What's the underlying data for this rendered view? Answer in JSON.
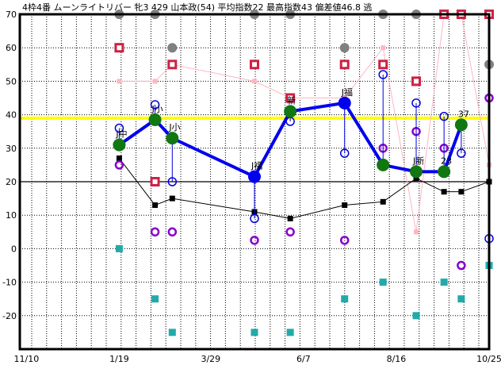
{
  "chart_data": {
    "type": "line",
    "title": "4枠4番 ムーンライトリバー 牝3 429 山本政(54) 平均指数22 最高指数43 偏差値46.8 逃",
    "xlabel": "",
    "ylabel": "",
    "x_tick_labels": [
      "11/10",
      "1/19",
      "3/29",
      "6/7",
      "8/16",
      "10/25"
    ],
    "y_tick_labels": [
      "70",
      "60",
      "50",
      "40",
      "30",
      "20",
      "10",
      "0",
      "-10",
      "-20"
    ],
    "xlim": [
      "11/5",
      "10/25"
    ],
    "ylim": [
      -30,
      70
    ],
    "grid": true,
    "reference_lines": [
      {
        "value": 39,
        "color": "#ffff00"
      },
      {
        "value": 20,
        "color": "#000000"
      }
    ],
    "x": [
      "1/19",
      "2/15",
      "2/28",
      "5/1",
      "5/28",
      "7/8",
      "8/6",
      "8/31",
      "9/21",
      "10/4",
      "10/25"
    ],
    "series": [
      {
        "style": "gray-dot",
        "color": "#808080",
        "values": [
          70,
          70,
          60,
          70,
          70,
          60,
          70,
          70,
          null,
          null,
          55
        ]
      },
      {
        "style": "red-square",
        "color": "#cc2244",
        "values": [
          60,
          20,
          55,
          55,
          45,
          55,
          55,
          50,
          70,
          70,
          70
        ]
      },
      {
        "style": "pink-line",
        "color": "#ffb6c1",
        "values": [
          50,
          50,
          55,
          50,
          45,
          45,
          60,
          5,
          70,
          70,
          25
        ]
      },
      {
        "style": "black-line",
        "color": "#000000",
        "values": [
          27,
          13,
          15,
          11,
          9,
          13,
          14,
          21,
          17,
          17,
          20
        ]
      },
      {
        "style": "purple-ring",
        "color": "#8800cc",
        "values": [
          25,
          5,
          5,
          2.5,
          5,
          2.5,
          30,
          35,
          30,
          -5,
          45
        ]
      },
      {
        "style": "teal-square",
        "color": "#22aaaa",
        "values": [
          0,
          -15,
          -25,
          -25,
          -25,
          -15,
          -10,
          -20,
          -10,
          -15,
          -5
        ]
      },
      {
        "style": "blue-ring",
        "color": "#0000dd",
        "values": [
          36,
          43,
          20,
          9,
          38,
          28.5,
          52,
          43.5,
          39.5,
          28.5,
          3
        ]
      },
      {
        "style": "main-line",
        "color": "#0000ee",
        "values": [
          31,
          38.5,
          33,
          21.5,
          41,
          43.5,
          25,
          23,
          23,
          37,
          null
        ],
        "marker_colors": [
          "#117711",
          "#117711",
          "#117711",
          "#0000ee",
          "#117711",
          "#0000ee",
          "#117711",
          "#117711",
          "#117711",
          "#117711",
          null
        ],
        "labels": [
          "J中",
          "J小",
          "J小",
          "J福",
          "新",
          "J福",
          "",
          "J新",
          "23",
          "37",
          ""
        ]
      }
    ]
  }
}
